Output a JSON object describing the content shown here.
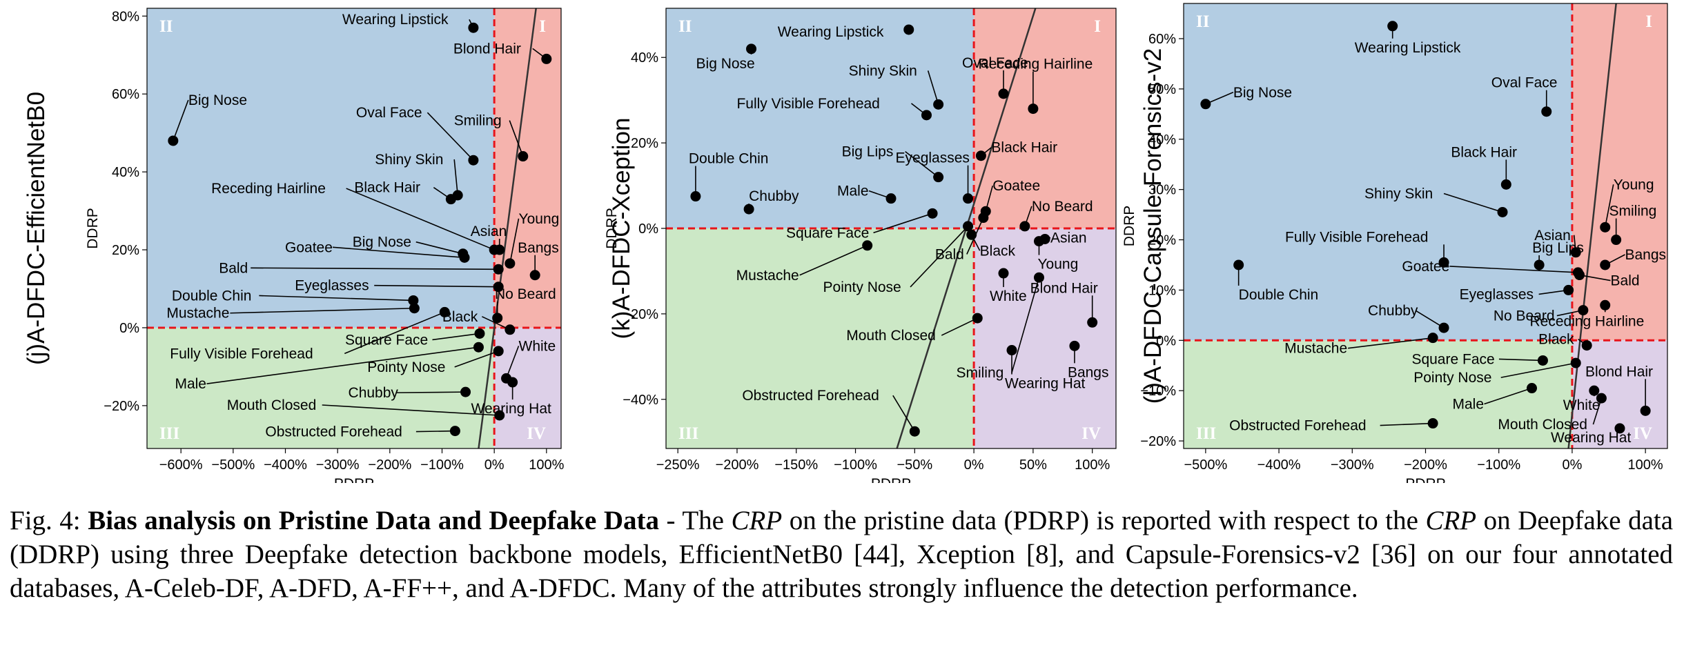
{
  "colors": {
    "quadrant_I": "#f5b3ad",
    "quadrant_II": "#b3cde3",
    "quadrant_III": "#cce8c6",
    "quadrant_IV": "#ddd0e8",
    "zero_lines": "#e8141a",
    "marker": "#000000",
    "fit_line": "#333333",
    "quadrant_label": "#ffffff"
  },
  "quadrant_labels": [
    "I",
    "II",
    "III",
    "IV"
  ],
  "caption": {
    "fig_label": "Fig. 4:",
    "bold_title": "Bias analysis on Pristine Data and Deepfake Data",
    "text_1": "- The",
    "crp_1": "CRP",
    "text_2": "on the pristine data (PDRP) is reported with respect to the",
    "crp_2": "CRP",
    "text_3": "on Deepfake data (DDRP) using three Deepfake detection backbone models, EfficientNetB0 [44], Xception [8], and Capsule-Forensics-v2 [36] on our four annotated databases, A-Celeb-DF, A-DFD, A-FF++, and A-DFDC. Many of the attributes strongly influence the detection performance."
  },
  "chart_data": [
    {
      "type": "scatter",
      "panel_title": "(j)A-DFDC-EfficientNetB0",
      "xlabel": "PDRP",
      "ylabel": "DDRP",
      "xlim": [
        -665,
        128
      ],
      "ylim": [
        -31,
        82
      ],
      "xticks": [
        -600,
        -500,
        -400,
        -300,
        -200,
        -100,
        0,
        100
      ],
      "xtick_labels": [
        "−600%",
        "−500%",
        "−400%",
        "−300%",
        "−200%",
        "−100%",
        "0%",
        "100%"
      ],
      "yticks": [
        -20,
        0,
        20,
        40,
        60,
        80
      ],
      "ytick_labels": [
        "−20%",
        "0%",
        "20%",
        "40%",
        "60%",
        "80%"
      ],
      "fit_line": [
        [
          -30,
          -31
        ],
        [
          80,
          82
        ]
      ],
      "points": [
        {
          "label": "Wearing Lipstick",
          "x": -40,
          "y": 77
        },
        {
          "label": "Blond Hair",
          "x": 100,
          "y": 69
        },
        {
          "label": "Big Nose",
          "x": -615,
          "y": 48
        },
        {
          "label": "Oval Face",
          "x": -40,
          "y": 43
        },
        {
          "label": "Smiling",
          "x": 55,
          "y": 44
        },
        {
          "label": "Shiny Skin",
          "x": -70,
          "y": 34
        },
        {
          "label": "Black Hair",
          "x": -83,
          "y": 33
        },
        {
          "label": "Receding Hairline",
          "x": 0,
          "y": 20
        },
        {
          "label": "Asian",
          "x": 10,
          "y": 20
        },
        {
          "label": "Young",
          "x": 30,
          "y": 16.5
        },
        {
          "label": "Big Nose",
          "x": -60,
          "y": 19
        },
        {
          "label": "Goatee",
          "x": -57,
          "y": 18
        },
        {
          "label": "Bangs",
          "x": 78,
          "y": 13.5
        },
        {
          "label": "Bald",
          "x": 8,
          "y": 15
        },
        {
          "label": "Eyeglasses",
          "x": 8,
          "y": 10.5
        },
        {
          "label": "Double Chin",
          "x": -155,
          "y": 7
        },
        {
          "label": "Mustache",
          "x": -153,
          "y": 5
        },
        {
          "label": "Fully Visible Forehead",
          "x": -95,
          "y": 4
        },
        {
          "label": "No Beard",
          "x": 6,
          "y": 2.5
        },
        {
          "label": "Black",
          "x": 30,
          "y": -0.5
        },
        {
          "label": "Square Face",
          "x": -28,
          "y": -1.5
        },
        {
          "label": "Male",
          "x": -30,
          "y": -5
        },
        {
          "label": "Pointy Nose",
          "x": 8,
          "y": -6
        },
        {
          "label": "White",
          "x": 23,
          "y": -13
        },
        {
          "label": "Wearing Hat",
          "x": 35,
          "y": -14
        },
        {
          "label": "Chubby",
          "x": -55,
          "y": -16.5
        },
        {
          "label": "Mouth Closed",
          "x": 10,
          "y": -22.5
        },
        {
          "label": "Obstructed Forehead",
          "x": -75,
          "y": -26.5
        }
      ]
    },
    {
      "type": "scatter",
      "panel_title": "(k)A-DFDC-Xception",
      "xlabel": "PDRP",
      "ylabel": "DDRP",
      "xlim": [
        -260,
        120
      ],
      "ylim": [
        -51.5,
        51.5
      ],
      "xticks": [
        -250,
        -200,
        -150,
        -100,
        -50,
        0,
        50,
        100
      ],
      "xtick_labels": [
        "−250%",
        "−200%",
        "−150%",
        "−100%",
        "−50%",
        "0%",
        "50%",
        "100%"
      ],
      "yticks": [
        -40,
        -20,
        0,
        20,
        40
      ],
      "ytick_labels": [
        "−40%",
        "−20%",
        "0%",
        "20%",
        "40%"
      ],
      "fit_line": [
        [
          -65,
          -51.5
        ],
        [
          52,
          51.5
        ]
      ],
      "points": [
        {
          "label": "Wearing Lipstick",
          "x": -55,
          "y": 46.5
        },
        {
          "label": "Big Nose",
          "x": -188,
          "y": 42
        },
        {
          "label": "Shiny Skin",
          "x": -30,
          "y": 29
        },
        {
          "label": "Fully Visible Forehead",
          "x": -40,
          "y": 26.5
        },
        {
          "label": "Oval Face",
          "x": 25,
          "y": 31.5
        },
        {
          "label": "Receding Hairline",
          "x": 50,
          "y": 28
        },
        {
          "label": "Black Hair",
          "x": 6,
          "y": 17
        },
        {
          "label": "Double Chin",
          "x": -235,
          "y": 7.5
        },
        {
          "label": "Chubby",
          "x": -190,
          "y": 4.5
        },
        {
          "label": "Eyeglasses",
          "x": -5,
          "y": 7
        },
        {
          "label": "Big Lips",
          "x": -30,
          "y": 12
        },
        {
          "label": "Male",
          "x": -70,
          "y": 7
        },
        {
          "label": "Goatee",
          "x": 10,
          "y": 4
        },
        {
          "label": "No Beard",
          "x": 43,
          "y": 0.5
        },
        {
          "label": "Square Face",
          "x": -35,
          "y": 3.5
        },
        {
          "label": "Mustache",
          "x": -90,
          "y": -4
        },
        {
          "label": "Black",
          "x": -2,
          "y": -1.5
        },
        {
          "label": "Asian",
          "x": 60,
          "y": -2.5
        },
        {
          "label": "Young",
          "x": 55,
          "y": -3
        },
        {
          "label": "Bald",
          "x": 8,
          "y": 2.5
        },
        {
          "label": "Pointy Nose",
          "x": -5,
          "y": 0.5
        },
        {
          "label": "White",
          "x": 25,
          "y": -10.5
        },
        {
          "label": "Blond Hair",
          "x": 100,
          "y": -22
        },
        {
          "label": "Mouth Closed",
          "x": 3,
          "y": -21
        },
        {
          "label": "Smiling",
          "x": 55,
          "y": -11.5
        },
        {
          "label": "Wearing Hat",
          "x": 32,
          "y": -28.5
        },
        {
          "label": "Bangs",
          "x": 85,
          "y": -27.5
        },
        {
          "label": "Obstructed Forehead",
          "x": -50,
          "y": -47.5
        }
      ]
    },
    {
      "type": "scatter",
      "panel_title": "(l)A-DFDC-Capsule-Forensics-v2",
      "xlabel": "PDRP",
      "ylabel": "DDRP",
      "xlim": [
        -530,
        130
      ],
      "ylim": [
        -21.5,
        67
      ],
      "xticks": [
        -500,
        -400,
        -300,
        -200,
        -100,
        0,
        100
      ],
      "xtick_labels": [
        "−500%",
        "−400%",
        "−300%",
        "−200%",
        "−100%",
        "0%",
        "100%"
      ],
      "yticks": [
        -20,
        -10,
        0,
        10,
        20,
        30,
        40,
        50,
        60
      ],
      "ytick_labels": [
        "−20%",
        "−10%",
        "0%",
        "10%",
        "20%",
        "30%",
        "40%",
        "50%",
        "60%"
      ],
      "fit_line": [
        [
          -5,
          -21.5
        ],
        [
          60,
          67
        ]
      ],
      "points": [
        {
          "label": "Wearing Lipstick",
          "x": -245,
          "y": 62.5
        },
        {
          "label": "Big Nose",
          "x": -500,
          "y": 47
        },
        {
          "label": "Oval Face",
          "x": -35,
          "y": 45.5
        },
        {
          "label": "Black Hair",
          "x": -90,
          "y": 31
        },
        {
          "label": "Shiny Skin",
          "x": -95,
          "y": 25.5
        },
        {
          "label": "Young",
          "x": 45,
          "y": 22.5
        },
        {
          "label": "Smiling",
          "x": 60,
          "y": 20
        },
        {
          "label": "Asian",
          "x": 5,
          "y": 17.5
        },
        {
          "label": "Fully Visible Forehead",
          "x": -175,
          "y": 15.5
        },
        {
          "label": "Big Lips",
          "x": -45,
          "y": 15
        },
        {
          "label": "Bangs",
          "x": 45,
          "y": 15
        },
        {
          "label": "Double Chin",
          "x": -455,
          "y": 15
        },
        {
          "label": "Goatee",
          "x": 8,
          "y": 13.5
        },
        {
          "label": "Bald",
          "x": 10,
          "y": 13
        },
        {
          "label": "Eyeglasses",
          "x": -5,
          "y": 10
        },
        {
          "label": "No Beard",
          "x": 15,
          "y": 6
        },
        {
          "label": "Receding Hairline",
          "x": 45,
          "y": 7
        },
        {
          "label": "Chubby",
          "x": -175,
          "y": 2.5
        },
        {
          "label": "Mustache",
          "x": -190,
          "y": 0.5
        },
        {
          "label": "Black",
          "x": 20,
          "y": -1
        },
        {
          "label": "Square Face",
          "x": -40,
          "y": -4
        },
        {
          "label": "Pointy Nose",
          "x": 5,
          "y": -4.5
        },
        {
          "label": "Male",
          "x": -55,
          "y": -9.5
        },
        {
          "label": "White",
          "x": 30,
          "y": -10
        },
        {
          "label": "Mouth Closed",
          "x": 40,
          "y": -11.5
        },
        {
          "label": "Blond Hair",
          "x": 100,
          "y": -14
        },
        {
          "label": "Wearing Hat",
          "x": 65,
          "y": -17.5
        },
        {
          "label": "Obstructed Forehead",
          "x": -190,
          "y": -16.5
        }
      ]
    }
  ]
}
